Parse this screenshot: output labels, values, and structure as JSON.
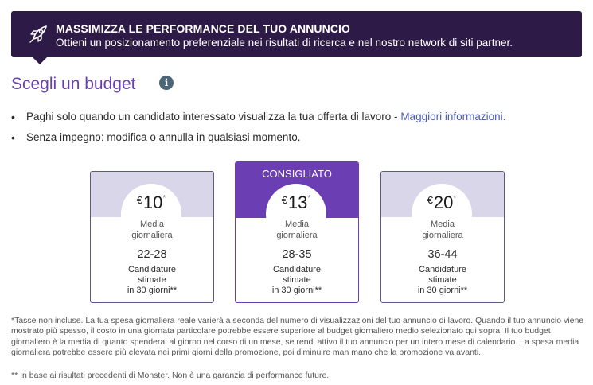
{
  "banner": {
    "title": "MASSIMIZZA LE PERFORMANCE DEL TUO ANNUNCIO",
    "subtitle": "Ottieni un posizionamento preferenziale nei risultati di ricerca e nel nostro network di siti partner.",
    "icon": "rocket-icon",
    "background": "#2e1a47"
  },
  "heading": "Scegli un budget",
  "info_icon": {
    "glyph": "i",
    "name": "info-icon"
  },
  "bullets": {
    "item1_text": "Paghi solo quando un candidato interessato visualizza la tua offerta di lavoro - ",
    "item1_link": "Maggiori informazioni.",
    "item2_text": "Senza impegno: modifica o annulla in qualsiasi momento."
  },
  "cards": [
    {
      "currency": "€",
      "amount": "10",
      "asterisk": "*",
      "media1": "Media",
      "media2": "giornaliera",
      "range": "22-28",
      "cand1": "Candidature",
      "cand2": "stimate",
      "cand3": "in 30 giorni**"
    },
    {
      "badge": "CONSIGLIATO",
      "currency": "€",
      "amount": "13",
      "asterisk": "*",
      "media1": "Media",
      "media2": "giornaliera",
      "range": "28-35",
      "cand1": "Candidature",
      "cand2": "stimate",
      "cand3": "in 30 giorni**"
    },
    {
      "currency": "€",
      "amount": "20",
      "asterisk": "*",
      "media1": "Media",
      "media2": "giornaliera",
      "range": "36-44",
      "cand1": "Candidature",
      "cand2": "stimate",
      "cand3": "in 30 giorni**"
    }
  ],
  "footnote": "*Tasse non incluse. La tua spesa giornaliera reale varierà a seconda del numero di visualizzazioni del tuo annuncio di lavoro. Quando il tuo annuncio viene mostrato più spesso, il costo in una giornata particolare potrebbe essere superiore al budget giornaliero medio selezionato qui sopra. Il tuo budget giornaliero è la media di quanto spenderai al giorno nel corso di un mese, se rendi attivo il tuo annuncio per un intero mese di calendario. La spesa media giornaliera potrebbe essere più elevata nei primi giorni della promozione, poi diminuire man mano che la promozione va avanti.",
  "footnote2": "** In base ai risultati precedenti di Monster. Non è una garanzia di performance future.",
  "colors": {
    "accent": "#6b3fb3",
    "card_top": "#d9d6ea",
    "link": "#4a5bb0"
  }
}
